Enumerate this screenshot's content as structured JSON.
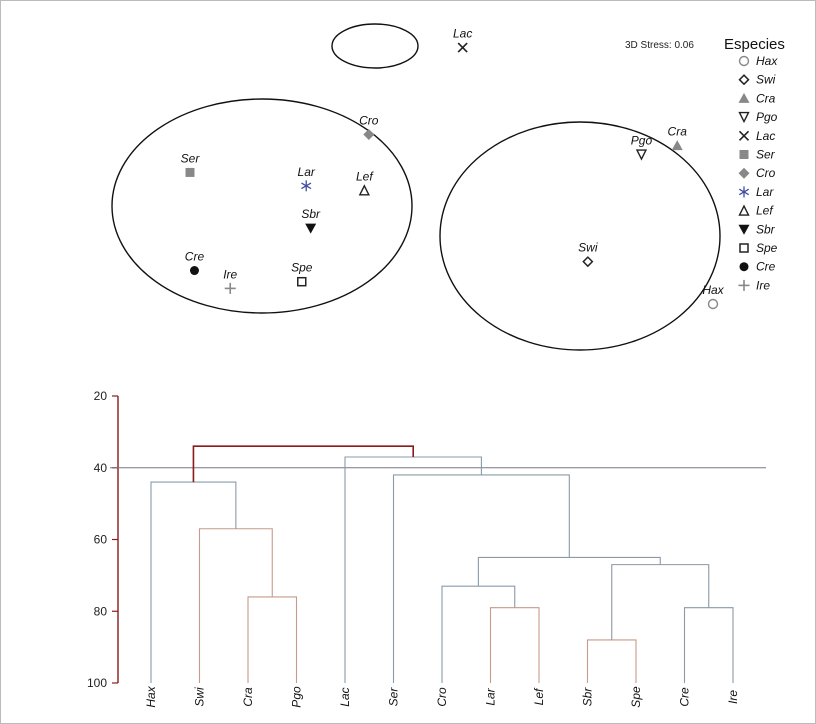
{
  "chart_data": [
    {
      "type": "scatter",
      "stress_label": "3D Stress: 0.06",
      "legend_title": "Especies",
      "legend_placement": "top-right",
      "points": [
        {
          "label": "Lac",
          "x": 0.52,
          "y": 0.95,
          "symbol": "x",
          "color": "#222222"
        },
        {
          "label": "Cro",
          "x": 0.31,
          "y": 0.56,
          "symbol": "diamond-filled",
          "color": "#888888"
        },
        {
          "label": "Ser",
          "x": -0.09,
          "y": 0.39,
          "symbol": "square-filled",
          "color": "#888888"
        },
        {
          "label": "Lar",
          "x": 0.17,
          "y": 0.33,
          "symbol": "asterisk",
          "color": "#3b4fa0"
        },
        {
          "label": "Lef",
          "x": 0.3,
          "y": 0.31,
          "symbol": "triangle-open",
          "color": "#222222"
        },
        {
          "label": "Sbr",
          "x": 0.18,
          "y": 0.14,
          "symbol": "triangle-down-filled",
          "color": "#111111"
        },
        {
          "label": "Cre",
          "x": -0.08,
          "y": -0.05,
          "symbol": "circle-filled",
          "color": "#111111"
        },
        {
          "label": "Ire",
          "x": 0.0,
          "y": -0.13,
          "symbol": "plus",
          "color": "#888888"
        },
        {
          "label": "Spe",
          "x": 0.16,
          "y": -0.1,
          "symbol": "square-open",
          "color": "#222222"
        },
        {
          "label": "Pgo",
          "x": 0.92,
          "y": 0.47,
          "symbol": "triangle-down-open",
          "color": "#222222"
        },
        {
          "label": "Cra",
          "x": 1.0,
          "y": 0.51,
          "symbol": "triangle-filled",
          "color": "#888888"
        },
        {
          "label": "Swi",
          "x": 0.8,
          "y": -0.01,
          "symbol": "diamond-open",
          "color": "#222222"
        },
        {
          "label": "Hax",
          "x": 1.08,
          "y": -0.2,
          "symbol": "circle-open",
          "color": "#888888"
        }
      ],
      "groups": [
        [
          "Lac"
        ],
        [
          "Cro",
          "Ser",
          "Lar",
          "Lef",
          "Sbr",
          "Cre",
          "Ire",
          "Spe"
        ],
        [
          "Pgo",
          "Cra",
          "Swi",
          "Hax"
        ]
      ],
      "legend": [
        {
          "label": "Hax",
          "symbol": "circle-open",
          "color": "#888888"
        },
        {
          "label": "Swi",
          "symbol": "diamond-open",
          "color": "#222222"
        },
        {
          "label": "Cra",
          "symbol": "triangle-filled",
          "color": "#888888"
        },
        {
          "label": "Pgo",
          "symbol": "triangle-down-open",
          "color": "#222222"
        },
        {
          "label": "Lac",
          "symbol": "x",
          "color": "#222222"
        },
        {
          "label": "Ser",
          "symbol": "square-filled",
          "color": "#888888"
        },
        {
          "label": "Cro",
          "symbol": "diamond-filled",
          "color": "#888888"
        },
        {
          "label": "Lar",
          "symbol": "asterisk",
          "color": "#3b4fa0"
        },
        {
          "label": "Lef",
          "symbol": "triangle-open",
          "color": "#222222"
        },
        {
          "label": "Sbr",
          "symbol": "triangle-down-filled",
          "color": "#111111"
        },
        {
          "label": "Spe",
          "symbol": "square-open",
          "color": "#222222"
        },
        {
          "label": "Cre",
          "symbol": "circle-filled",
          "color": "#111111"
        },
        {
          "label": "Ire",
          "symbol": "plus",
          "color": "#888888"
        }
      ]
    },
    {
      "type": "dendrogram",
      "leaves": [
        "Hax",
        "Swi",
        "Cra",
        "Pgo",
        "Lac",
        "Ser",
        "Cro",
        "Lar",
        "Lef",
        "Sbr",
        "Spe",
        "Cre",
        "Ire"
      ],
      "y_ticks": [
        "20",
        "40",
        "60",
        "80",
        "100"
      ],
      "ylim": [
        20,
        100
      ],
      "cut_line": 40,
      "merges": [
        {
          "left": "Cra",
          "right": "Pgo",
          "height": 76,
          "color": "#c89a8a"
        },
        {
          "left": "Swi",
          "right": "m0",
          "height": 57,
          "color": "#c89a8a"
        },
        {
          "left": "Hax",
          "right": "m1",
          "height": 44,
          "color": "#8a9aa8"
        },
        {
          "left": "Lar",
          "right": "Lef",
          "height": 79,
          "color": "#c89a8a"
        },
        {
          "left": "Cro",
          "right": "m3",
          "height": 73,
          "color": "#8a9aa8"
        },
        {
          "left": "Sbr",
          "right": "Spe",
          "height": 88,
          "color": "#c89a8a"
        },
        {
          "left": "Cre",
          "right": "Ire",
          "height": 79,
          "color": "#8a9aa8"
        },
        {
          "left": "m5",
          "right": "m6",
          "height": 67,
          "color": "#8a9aa8"
        },
        {
          "left": "m4",
          "right": "m7",
          "height": 65,
          "color": "#8a9aa8"
        },
        {
          "left": "Ser",
          "right": "m8",
          "height": 42,
          "color": "#8a9aa8"
        },
        {
          "left": "Lac",
          "right": "m9",
          "height": 37,
          "color": "#8a9aa8"
        },
        {
          "left": "m2",
          "right": "m10",
          "height": 34,
          "color": "#8b1a1a"
        }
      ]
    }
  ]
}
